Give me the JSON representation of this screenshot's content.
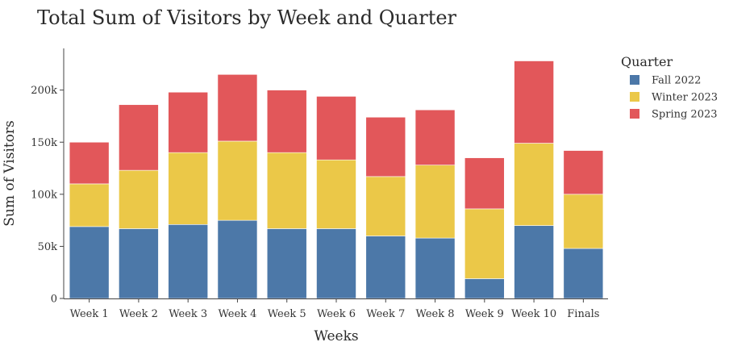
{
  "chart_data": {
    "type": "bar",
    "stacked": true,
    "title": "Total Sum of Visitors by Week and Quarter",
    "xlabel": "Weeks",
    "ylabel": "Sum of Visitors",
    "categories": [
      "Week 1",
      "Week 2",
      "Week 3",
      "Week 4",
      "Week 5",
      "Week 6",
      "Week 7",
      "Week 8",
      "Week 9",
      "Week 10",
      "Finals"
    ],
    "series": [
      {
        "name": "Fall 2022",
        "color": "#4c78a8",
        "values": [
          69000,
          67000,
          71000,
          75000,
          67000,
          67000,
          60000,
          58000,
          19000,
          70000,
          48000
        ]
      },
      {
        "name": "Winter 2023",
        "color": "#ebc848",
        "values": [
          41000,
          56000,
          69000,
          76000,
          73000,
          66000,
          57000,
          70000,
          67000,
          79000,
          52000
        ]
      },
      {
        "name": "Spring 2023",
        "color": "#e2575a",
        "values": [
          40000,
          63000,
          58000,
          64000,
          60000,
          61000,
          57000,
          53000,
          49000,
          79000,
          42000
        ]
      }
    ],
    "ylim": [
      0,
      240000
    ],
    "yticks": [
      0,
      50000,
      100000,
      150000,
      200000
    ],
    "ytick_labels": [
      "0",
      "50k",
      "100k",
      "150k",
      "200k"
    ],
    "legend": {
      "title": "Quarter",
      "placement": "top-right"
    },
    "grid": false
  }
}
